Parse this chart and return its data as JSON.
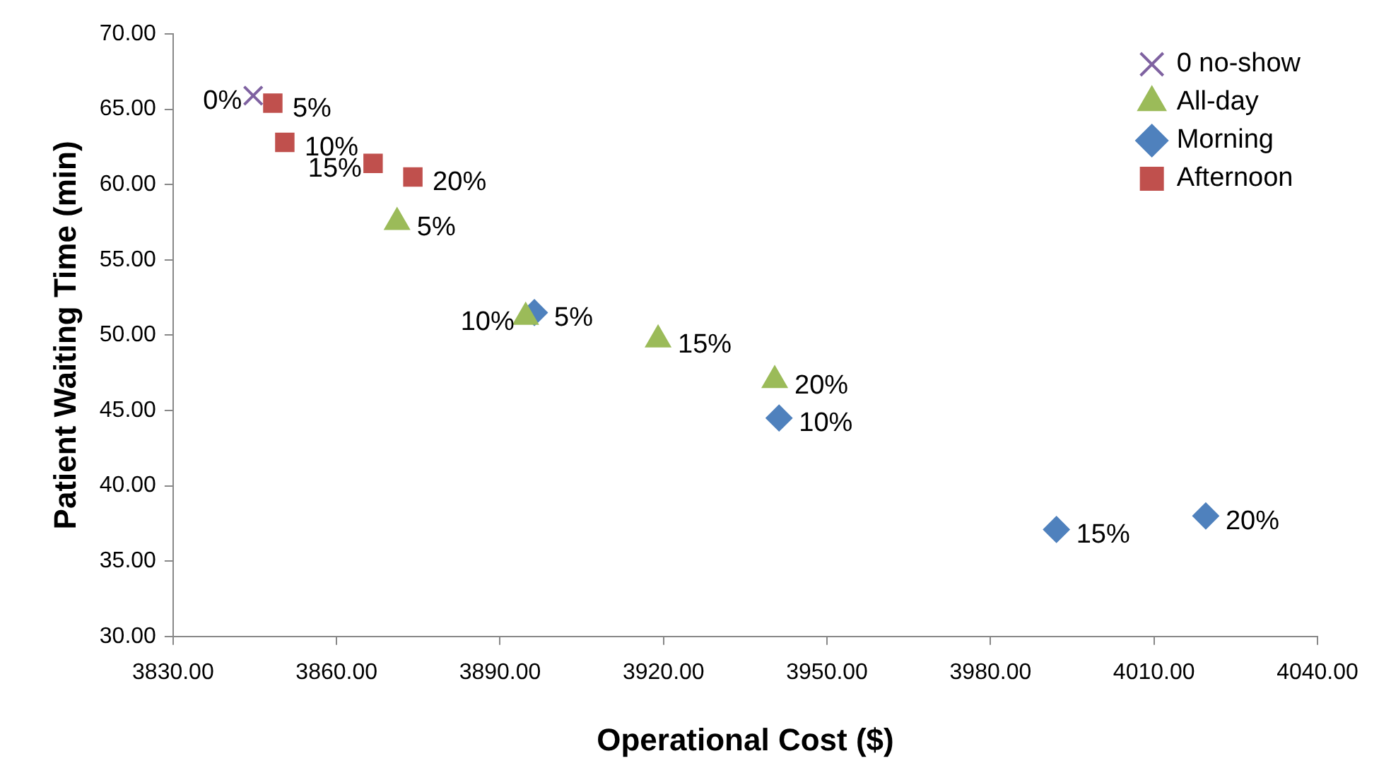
{
  "chart_data": {
    "type": "scatter",
    "xlabel": "Operational Cost ($)",
    "ylabel": "Patient Waiting Time (min)",
    "xlim": [
      3830,
      4040
    ],
    "xticks": [
      {
        "value": 3830,
        "label": "3830.00"
      },
      {
        "value": 3860,
        "label": "3860.00"
      },
      {
        "value": 3890,
        "label": "3890.00"
      },
      {
        "value": 3920,
        "label": "3920.00"
      },
      {
        "value": 3950,
        "label": "3950.00"
      },
      {
        "value": 3980,
        "label": "3980.00"
      },
      {
        "value": 4010,
        "label": "4010.00"
      },
      {
        "value": 4040,
        "label": "4040.00"
      }
    ],
    "ylim": [
      30,
      70
    ],
    "yticks": [
      {
        "value": 30,
        "label": "30.00"
      },
      {
        "value": 35,
        "label": "35.00"
      },
      {
        "value": 40,
        "label": "40.00"
      },
      {
        "value": 45,
        "label": "45.00"
      },
      {
        "value": 50,
        "label": "50.00"
      },
      {
        "value": 55,
        "label": "55.00"
      },
      {
        "value": 60,
        "label": "60.00"
      },
      {
        "value": 65,
        "label": "65.00"
      },
      {
        "value": 70,
        "label": "70.00"
      }
    ],
    "grid": false,
    "legend": "top right",
    "series": [
      {
        "name": "0 no-show",
        "color": "#7f62a1",
        "marker": "cross",
        "x": [
          3844.7
        ],
        "values": [
          65.9
        ]
      },
      {
        "name": "All-day",
        "color": "#9bbb59",
        "marker": "triangle",
        "x": [
          3871.1,
          3894.7,
          3919,
          3940.4
        ],
        "values": [
          57.5,
          51.2,
          49.7,
          47.0
        ]
      },
      {
        "name": "Morning",
        "color": "#4f81bd",
        "marker": "diamond",
        "x": [
          3896.3,
          3941.2,
          3992.1,
          4019.5
        ],
        "values": [
          51.5,
          44.5,
          37.1,
          38.0
        ]
      },
      {
        "name": "Afternoon",
        "color": "#c0504d",
        "marker": "square",
        "x": [
          3848.3,
          3850.5,
          3866.7,
          3874.0
        ],
        "values": [
          65.4,
          62.8,
          61.4,
          60.5
        ]
      }
    ],
    "annotations": [
      {
        "text": "0%",
        "x": 3844.7,
        "y": 65.9
      },
      {
        "text": "5%",
        "x": 3871.1,
        "y": 57.5
      },
      {
        "text": "10%",
        "x": 3894.7,
        "y": 51.2
      },
      {
        "text": "15%",
        "x": 3919,
        "y": 49.7
      },
      {
        "text": "20%",
        "x": 3940.4,
        "y": 47.0
      },
      {
        "text": "5%",
        "x": 3896.3,
        "y": 51.5
      },
      {
        "text": "10%",
        "x": 3941.2,
        "y": 44.5
      },
      {
        "text": "15%",
        "x": 3992.1,
        "y": 37.1
      },
      {
        "text": "20%",
        "x": 4019.5,
        "y": 38.0
      },
      {
        "text": "5%",
        "x": 3848.3,
        "y": 65.4
      },
      {
        "text": "10%",
        "x": 3850.5,
        "y": 62.8
      },
      {
        "text": "15%",
        "x": 3866.7,
        "y": 61.4
      },
      {
        "text": "20%",
        "x": 3874.0,
        "y": 60.5
      }
    ]
  }
}
